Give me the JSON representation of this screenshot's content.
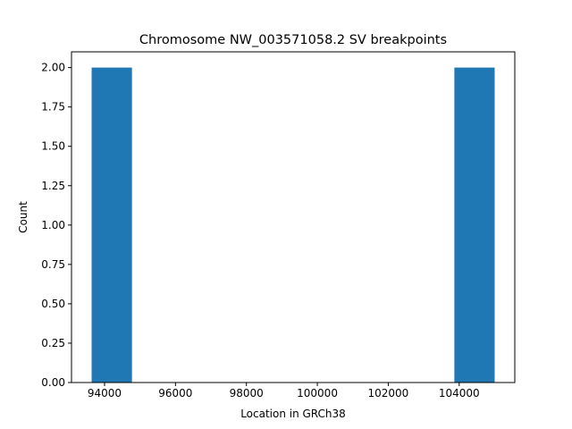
{
  "chart_data": {
    "type": "bar",
    "title": "Chromosome NW_003571058.2 SV breakpoints",
    "xlabel": "Location in GRCh38",
    "ylabel": "Count",
    "xlim": [
      93068,
      105568
    ],
    "ylim": [
      0,
      2.1
    ],
    "xticks": [
      {
        "value": 94000,
        "label": "94000"
      },
      {
        "value": 96000,
        "label": "96000"
      },
      {
        "value": 98000,
        "label": "98000"
      },
      {
        "value": 100000,
        "label": "100000"
      },
      {
        "value": 102000,
        "label": "102000"
      },
      {
        "value": 104000,
        "label": "104000"
      }
    ],
    "yticks": [
      {
        "value": 0,
        "label": "0.00"
      },
      {
        "value": 0.25,
        "label": "0.25"
      },
      {
        "value": 0.5,
        "label": "0.50"
      },
      {
        "value": 0.75,
        "label": "0.75"
      },
      {
        "value": 1.0,
        "label": "1.00"
      },
      {
        "value": 1.25,
        "label": "1.25"
      },
      {
        "value": 1.5,
        "label": "1.50"
      },
      {
        "value": 1.75,
        "label": "1.75"
      },
      {
        "value": 2.0,
        "label": "2.00"
      }
    ],
    "bins": [
      {
        "start": 93636,
        "end": 94773,
        "count": 2
      },
      {
        "start": 94773,
        "end": 95909,
        "count": 0
      },
      {
        "start": 95909,
        "end": 97046,
        "count": 0
      },
      {
        "start": 97046,
        "end": 98182,
        "count": 0
      },
      {
        "start": 98182,
        "end": 99318,
        "count": 0
      },
      {
        "start": 99318,
        "end": 100455,
        "count": 0
      },
      {
        "start": 100455,
        "end": 101591,
        "count": 0
      },
      {
        "start": 101591,
        "end": 102727,
        "count": 0
      },
      {
        "start": 102727,
        "end": 103864,
        "count": 0
      },
      {
        "start": 103864,
        "end": 105000,
        "count": 2
      }
    ],
    "bar_color": "#1f77b4",
    "grid": false,
    "legend": "none"
  }
}
